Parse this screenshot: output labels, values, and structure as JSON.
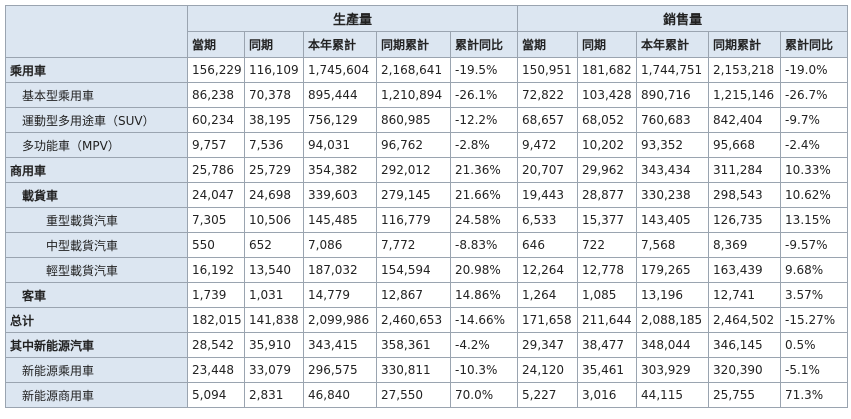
{
  "table": {
    "groups": [
      "生產量",
      "銷售量"
    ],
    "columns": [
      "當期",
      "同期",
      "本年累計",
      "同期累計",
      "累計同比",
      "當期",
      "同期",
      "本年累計",
      "同期累計",
      "累計同比"
    ],
    "rows": [
      [
        "乘用車",
        "156,229",
        "116,109",
        "1,745,604",
        "2,168,641",
        "-19.5%",
        "150,951",
        "181,682",
        "1,744,751",
        "2,153,218",
        "-19.0%"
      ],
      [
        "基本型乘用車",
        "86,238",
        "70,378",
        "895,444",
        "1,210,894",
        "-26.1%",
        "72,822",
        "103,428",
        "890,716",
        "1,215,146",
        "-26.7%"
      ],
      [
        "運動型多用途車（SUV）",
        "60,234",
        "38,195",
        "756,129",
        "860,985",
        "-12.2%",
        "68,657",
        "68,052",
        "760,683",
        "842,404",
        "-9.7%"
      ],
      [
        "多功能車（MPV）",
        "9,757",
        "7,536",
        "94,031",
        "96,762",
        "-2.8%",
        "9,472",
        "10,202",
        "93,352",
        "95,668",
        "-2.4%"
      ],
      [
        "商用車",
        "25,786",
        "25,729",
        "354,382",
        "292,012",
        "21.36%",
        "20,707",
        "29,962",
        "343,434",
        "311,284",
        "10.33%"
      ],
      [
        "載貨車",
        "24,047",
        "24,698",
        "339,603",
        "279,145",
        "21.66%",
        "19,443",
        "28,877",
        "330,238",
        "298,543",
        "10.62%"
      ],
      [
        "重型載貨汽車",
        "7,305",
        "10,506",
        "145,485",
        "116,779",
        "24.58%",
        "6,533",
        "15,377",
        "143,405",
        "126,735",
        "13.15%"
      ],
      [
        "中型載貨汽車",
        "550",
        "652",
        "7,086",
        "7,772",
        "-8.83%",
        "646",
        "722",
        "7,568",
        "8,369",
        "-9.57%"
      ],
      [
        "輕型載貨汽車",
        "16,192",
        "13,540",
        "187,032",
        "154,594",
        "20.98%",
        "12,264",
        "12,778",
        "179,265",
        "163,439",
        "9.68%"
      ],
      [
        "客車",
        "1,739",
        "1,031",
        "14,779",
        "12,867",
        "14.86%",
        "1,264",
        "1,085",
        "13,196",
        "12,741",
        "3.57%"
      ],
      [
        "总计",
        "182,015",
        "141,838",
        "2,099,986",
        "2,460,653",
        "-14.66%",
        "171,658",
        "211,644",
        "2,088,185",
        "2,464,502",
        "-15.27%"
      ],
      [
        "其中新能源汽車",
        "28,542",
        "35,910",
        "343,415",
        "358,361",
        "-4.2%",
        "29,347",
        "38,477",
        "348,044",
        "346,145",
        "0.5%"
      ],
      [
        "新能源乘用車",
        "23,448",
        "33,079",
        "296,575",
        "330,811",
        "-10.3%",
        "24,120",
        "35,461",
        "303,929",
        "320,390",
        "-5.1%"
      ],
      [
        "新能源商用車",
        "5,094",
        "2,831",
        "46,840",
        "27,550",
        "70.0%",
        "5,227",
        "3,016",
        "44,115",
        "25,755",
        "71.3%"
      ]
    ]
  }
}
